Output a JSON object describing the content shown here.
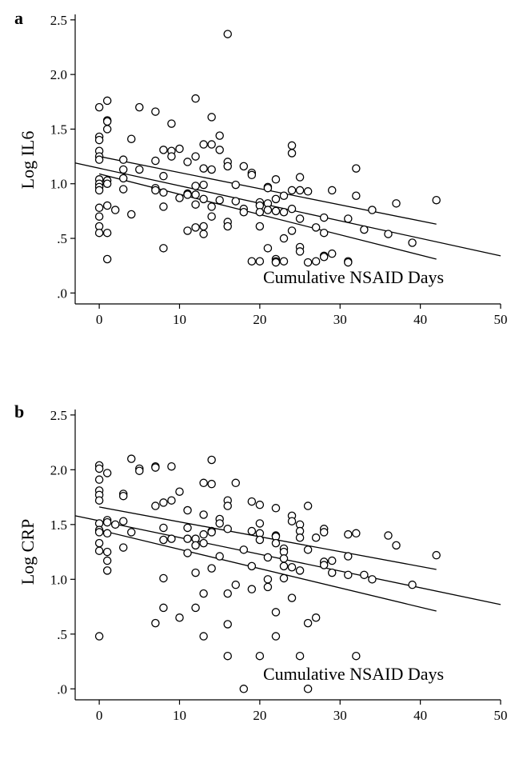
{
  "chart_data": [
    {
      "type": "scatter",
      "panel_label": "a",
      "xlabel": "Cumulative NSAID Days",
      "ylabel": "Log IL6",
      "xlim": [
        -3,
        50
      ],
      "ylim": [
        -0.1,
        2.55
      ],
      "xticks": [
        0,
        10,
        20,
        30,
        40,
        50
      ],
      "xtick_labels": [
        "0",
        "10",
        "20",
        "30",
        "40",
        "50"
      ],
      "yticks": [
        0,
        0.5,
        1.0,
        1.5,
        2.0,
        2.5
      ],
      "ytick_labels": [
        ".0",
        ".5",
        "1.0",
        "1.5",
        "2.0",
        "2.5"
      ],
      "grid": false,
      "points": [
        [
          0,
          1.7
        ],
        [
          0,
          1.43
        ],
        [
          0,
          1.4
        ],
        [
          0,
          1.3
        ],
        [
          0,
          1.25
        ],
        [
          0,
          1.22
        ],
        [
          0,
          1.04
        ],
        [
          0,
          1.0
        ],
        [
          0,
          0.97
        ],
        [
          0,
          0.94
        ],
        [
          0,
          0.78
        ],
        [
          0,
          0.7
        ],
        [
          0,
          0.61
        ],
        [
          0,
          0.55
        ],
        [
          1,
          1.76
        ],
        [
          1,
          1.58
        ],
        [
          1,
          1.57
        ],
        [
          1,
          1.5
        ],
        [
          1,
          1.03
        ],
        [
          1,
          1.0
        ],
        [
          1,
          0.8
        ],
        [
          1,
          0.55
        ],
        [
          1,
          0.31
        ],
        [
          2,
          0.76
        ],
        [
          3,
          1.22
        ],
        [
          3,
          1.13
        ],
        [
          3,
          1.05
        ],
        [
          3,
          0.95
        ],
        [
          4,
          1.41
        ],
        [
          4,
          0.72
        ],
        [
          5,
          1.7
        ],
        [
          5,
          1.13
        ],
        [
          7,
          1.66
        ],
        [
          7,
          1.21
        ],
        [
          7,
          0.96
        ],
        [
          7,
          0.94
        ],
        [
          8,
          1.31
        ],
        [
          8,
          1.07
        ],
        [
          8,
          0.92
        ],
        [
          8,
          0.79
        ],
        [
          8,
          0.41
        ],
        [
          9,
          1.55
        ],
        [
          9,
          1.3
        ],
        [
          9,
          1.25
        ],
        [
          10,
          1.32
        ],
        [
          10,
          0.87
        ],
        [
          11,
          1.2
        ],
        [
          11,
          0.91
        ],
        [
          11,
          0.9
        ],
        [
          11,
          0.57
        ],
        [
          12,
          1.78
        ],
        [
          12,
          1.25
        ],
        [
          12,
          0.98
        ],
        [
          12,
          0.9
        ],
        [
          12,
          0.81
        ],
        [
          12,
          0.6
        ],
        [
          13,
          1.36
        ],
        [
          13,
          1.14
        ],
        [
          13,
          0.99
        ],
        [
          13,
          0.86
        ],
        [
          13,
          0.61
        ],
        [
          13,
          0.54
        ],
        [
          14,
          1.61
        ],
        [
          14,
          1.36
        ],
        [
          14,
          1.13
        ],
        [
          14,
          0.79
        ],
        [
          14,
          0.7
        ],
        [
          15,
          1.44
        ],
        [
          15,
          1.31
        ],
        [
          15,
          0.85
        ],
        [
          16,
          2.37
        ],
        [
          16,
          1.2
        ],
        [
          16,
          1.16
        ],
        [
          16,
          0.65
        ],
        [
          16,
          0.61
        ],
        [
          17,
          0.99
        ],
        [
          17,
          0.84
        ],
        [
          18,
          1.16
        ],
        [
          18,
          0.77
        ],
        [
          18,
          0.74
        ],
        [
          19,
          1.1
        ],
        [
          19,
          1.08
        ],
        [
          19,
          0.29
        ],
        [
          20,
          0.83
        ],
        [
          20,
          0.8
        ],
        [
          20,
          0.74
        ],
        [
          20,
          0.61
        ],
        [
          20,
          0.29
        ],
        [
          21,
          0.97
        ],
        [
          21,
          0.96
        ],
        [
          21,
          0.82
        ],
        [
          21,
          0.76
        ],
        [
          21,
          0.41
        ],
        [
          22,
          1.04
        ],
        [
          22,
          0.86
        ],
        [
          22,
          0.75
        ],
        [
          22,
          0.31
        ],
        [
          22,
          0.29
        ],
        [
          22,
          0.28
        ],
        [
          23,
          0.89
        ],
        [
          23,
          0.74
        ],
        [
          23,
          0.5
        ],
        [
          23,
          0.29
        ],
        [
          24,
          1.35
        ],
        [
          24,
          1.28
        ],
        [
          24,
          0.94
        ],
        [
          24,
          0.77
        ],
        [
          24,
          0.57
        ],
        [
          25,
          1.06
        ],
        [
          25,
          0.94
        ],
        [
          25,
          0.68
        ],
        [
          25,
          0.42
        ],
        [
          25,
          0.38
        ],
        [
          26,
          0.93
        ],
        [
          26,
          0.28
        ],
        [
          27,
          0.6
        ],
        [
          27,
          0.29
        ],
        [
          28,
          0.69
        ],
        [
          28,
          0.55
        ],
        [
          28,
          0.34
        ],
        [
          28,
          0.33
        ],
        [
          29,
          0.94
        ],
        [
          29,
          0.36
        ],
        [
          31,
          0.68
        ],
        [
          31,
          0.29
        ],
        [
          31,
          0.28
        ],
        [
          32,
          1.14
        ],
        [
          32,
          0.89
        ],
        [
          33,
          0.58
        ],
        [
          34,
          0.76
        ],
        [
          36,
          0.54
        ],
        [
          37,
          0.82
        ],
        [
          39,
          0.46
        ],
        [
          42,
          0.85
        ]
      ],
      "regression_line": {
        "x": [
          -3,
          50
        ],
        "y": [
          1.19,
          0.34
        ]
      },
      "confidence_band_upper": {
        "x": [
          0,
          42
        ],
        "y": [
          1.25,
          0.63
        ]
      },
      "confidence_band_lower": {
        "x": [
          0,
          42
        ],
        "y": [
          1.09,
          0.31
        ]
      }
    },
    {
      "type": "scatter",
      "panel_label": "b",
      "xlabel": "Cumulative NSAID Days",
      "ylabel": "Log CRP",
      "xlim": [
        -3,
        50
      ],
      "ylim": [
        -0.1,
        2.55
      ],
      "xticks": [
        0,
        10,
        20,
        30,
        40,
        50
      ],
      "xtick_labels": [
        "0",
        "10",
        "20",
        "30",
        "40",
        "50"
      ],
      "yticks": [
        0,
        0.5,
        1.0,
        1.5,
        2.0,
        2.5
      ],
      "ytick_labels": [
        ".0",
        ".5",
        "1.0",
        "1.5",
        "2.0",
        "2.5"
      ],
      "grid": false,
      "points": [
        [
          0,
          2.04
        ],
        [
          0,
          2.01
        ],
        [
          0,
          1.91
        ],
        [
          0,
          1.81
        ],
        [
          0,
          1.77
        ],
        [
          0,
          1.72
        ],
        [
          0,
          1.51
        ],
        [
          0,
          1.45
        ],
        [
          0,
          1.43
        ],
        [
          0,
          1.33
        ],
        [
          0,
          1.26
        ],
        [
          0,
          0.48
        ],
        [
          1,
          1.97
        ],
        [
          1,
          1.54
        ],
        [
          1,
          1.52
        ],
        [
          1,
          1.42
        ],
        [
          1,
          1.25
        ],
        [
          1,
          1.17
        ],
        [
          1,
          1.08
        ],
        [
          2,
          1.5
        ],
        [
          3,
          1.78
        ],
        [
          3,
          1.76
        ],
        [
          3,
          1.53
        ],
        [
          3,
          1.29
        ],
        [
          4,
          2.1
        ],
        [
          4,
          1.43
        ],
        [
          5,
          2.01
        ],
        [
          5,
          1.99
        ],
        [
          7,
          2.03
        ],
        [
          7,
          2.02
        ],
        [
          7,
          1.67
        ],
        [
          7,
          0.6
        ],
        [
          8,
          1.7
        ],
        [
          8,
          1.47
        ],
        [
          8,
          1.36
        ],
        [
          8,
          1.01
        ],
        [
          8,
          0.74
        ],
        [
          9,
          2.03
        ],
        [
          9,
          1.72
        ],
        [
          9,
          1.37
        ],
        [
          10,
          1.8
        ],
        [
          10,
          0.65
        ],
        [
          11,
          1.63
        ],
        [
          11,
          1.47
        ],
        [
          11,
          1.37
        ],
        [
          11,
          1.24
        ],
        [
          12,
          1.37
        ],
        [
          12,
          1.31
        ],
        [
          12,
          1.06
        ],
        [
          12,
          0.74
        ],
        [
          13,
          1.88
        ],
        [
          13,
          1.59
        ],
        [
          13,
          1.41
        ],
        [
          13,
          1.33
        ],
        [
          13,
          0.87
        ],
        [
          13,
          0.48
        ],
        [
          14,
          2.09
        ],
        [
          14,
          1.87
        ],
        [
          14,
          1.44
        ],
        [
          14,
          1.43
        ],
        [
          14,
          1.1
        ],
        [
          15,
          1.55
        ],
        [
          15,
          1.51
        ],
        [
          15,
          1.21
        ],
        [
          16,
          1.72
        ],
        [
          16,
          1.67
        ],
        [
          16,
          1.46
        ],
        [
          16,
          0.87
        ],
        [
          16,
          0.59
        ],
        [
          16,
          0.3
        ],
        [
          17,
          1.88
        ],
        [
          17,
          0.95
        ],
        [
          18,
          1.27
        ],
        [
          18,
          0.0
        ],
        [
          19,
          1.71
        ],
        [
          19,
          1.44
        ],
        [
          19,
          1.12
        ],
        [
          19,
          0.91
        ],
        [
          20,
          1.68
        ],
        [
          20,
          1.51
        ],
        [
          20,
          1.42
        ],
        [
          20,
          1.36
        ],
        [
          20,
          0.3
        ],
        [
          21,
          1.2
        ],
        [
          21,
          1.0
        ],
        [
          21,
          0.93
        ],
        [
          22,
          1.65
        ],
        [
          22,
          1.4
        ],
        [
          22,
          1.39
        ],
        [
          22,
          1.33
        ],
        [
          22,
          0.7
        ],
        [
          22,
          0.48
        ],
        [
          23,
          1.28
        ],
        [
          23,
          1.25
        ],
        [
          23,
          1.19
        ],
        [
          23,
          1.12
        ],
        [
          23,
          1.01
        ],
        [
          24,
          1.58
        ],
        [
          24,
          1.53
        ],
        [
          24,
          1.11
        ],
        [
          24,
          0.83
        ],
        [
          25,
          1.5
        ],
        [
          25,
          1.44
        ],
        [
          25,
          1.38
        ],
        [
          25,
          1.08
        ],
        [
          25,
          0.3
        ],
        [
          26,
          1.67
        ],
        [
          26,
          1.27
        ],
        [
          26,
          0.6
        ],
        [
          26,
          0.0
        ],
        [
          27,
          1.38
        ],
        [
          27,
          0.65
        ],
        [
          28,
          1.46
        ],
        [
          28,
          1.43
        ],
        [
          28,
          1.16
        ],
        [
          28,
          1.13
        ],
        [
          29,
          1.17
        ],
        [
          29,
          1.06
        ],
        [
          31,
          1.41
        ],
        [
          31,
          1.21
        ],
        [
          31,
          1.04
        ],
        [
          32,
          1.42
        ],
        [
          32,
          0.3
        ],
        [
          33,
          1.04
        ],
        [
          34,
          1.0
        ],
        [
          36,
          1.4
        ],
        [
          37,
          1.31
        ],
        [
          39,
          0.95
        ],
        [
          42,
          1.22
        ]
      ],
      "regression_line": {
        "x": [
          -3,
          50
        ],
        "y": [
          1.58,
          0.77
        ]
      },
      "confidence_band_upper": {
        "x": [
          0,
          42
        ],
        "y": [
          1.66,
          1.09
        ]
      },
      "confidence_band_lower": {
        "x": [
          0,
          42
        ],
        "y": [
          1.45,
          0.71
        ]
      }
    }
  ]
}
